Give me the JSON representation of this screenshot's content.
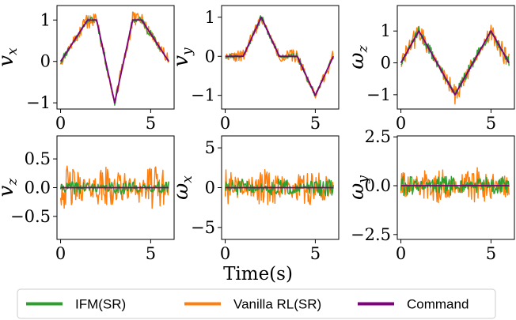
{
  "figure": {
    "xlabel": "Time(s)",
    "legend": {
      "placement": "bottom-center",
      "items": [
        {
          "label": "IFM(SR)",
          "color": "#2ca02c"
        },
        {
          "label": "Vanilla RL(SR)",
          "color": "#ff7f0e"
        },
        {
          "label": "Command",
          "color": "#800080"
        }
      ]
    }
  },
  "chart_data": [
    {
      "type": "line",
      "panel": "top-left",
      "ylabel": "v",
      "ylabel_sub": "x",
      "xlim": [
        -0.2,
        6.3
      ],
      "ylim": [
        -1.15,
        1.35
      ],
      "xticks": [
        0,
        5
      ],
      "xtick_labels": [
        "0",
        "5"
      ],
      "yticks": [
        -1,
        0,
        1
      ],
      "ytick_labels": [
        "−1",
        "0",
        "1"
      ],
      "series": [
        {
          "name": "Command",
          "color": "#800080",
          "x": [
            0,
            1.5,
            2,
            3,
            4,
            4.5,
            6
          ],
          "y": [
            0,
            1,
            1,
            -1,
            1,
            1,
            0
          ]
        },
        {
          "name": "IFM(SR)",
          "color": "#2ca02c",
          "noise": 0.1,
          "seed": 11
        },
        {
          "name": "Vanilla RL(SR)",
          "color": "#ff7f0e",
          "noise": 0.2,
          "seed": 12
        }
      ]
    },
    {
      "type": "line",
      "panel": "top-middle",
      "ylabel": "v",
      "ylabel_sub": "y",
      "xlim": [
        -0.2,
        6.3
      ],
      "ylim": [
        -1.35,
        1.3
      ],
      "xticks": [
        0,
        5
      ],
      "xtick_labels": [
        "0",
        "5"
      ],
      "yticks": [
        -1,
        0,
        1
      ],
      "ytick_labels": [
        "−1",
        "0",
        "1"
      ],
      "series": [
        {
          "name": "Command",
          "color": "#800080",
          "x": [
            0,
            1,
            2,
            3,
            4,
            5,
            6
          ],
          "y": [
            0,
            0,
            1,
            0,
            0,
            -1,
            0
          ]
        },
        {
          "name": "IFM(SR)",
          "color": "#2ca02c",
          "noise": 0.09,
          "seed": 21
        },
        {
          "name": "Vanilla RL(SR)",
          "color": "#ff7f0e",
          "noise": 0.17,
          "seed": 22
        }
      ]
    },
    {
      "type": "line",
      "panel": "top-right",
      "ylabel": "ω",
      "ylabel_sub": "z",
      "xlim": [
        -0.2,
        6.3
      ],
      "ylim": [
        -1.45,
        1.8
      ],
      "xticks": [
        0,
        5
      ],
      "xtick_labels": [
        "0",
        "5"
      ],
      "yticks": [
        -1,
        0,
        1
      ],
      "ytick_labels": [
        "−1",
        "0",
        "1"
      ],
      "series": [
        {
          "name": "Command",
          "color": "#800080",
          "x": [
            0,
            1,
            3,
            5,
            6
          ],
          "y": [
            0,
            1,
            -1,
            1,
            0
          ]
        },
        {
          "name": "IFM(SR)",
          "color": "#2ca02c",
          "noise": 0.18,
          "seed": 31
        },
        {
          "name": "Vanilla RL(SR)",
          "color": "#ff7f0e",
          "noise": 0.32,
          "seed": 32
        }
      ]
    },
    {
      "type": "line",
      "panel": "bottom-left",
      "ylabel": "v",
      "ylabel_sub": "z",
      "xlim": [
        -0.2,
        6.3
      ],
      "ylim": [
        -0.9,
        0.9
      ],
      "xticks": [
        0,
        5
      ],
      "xtick_labels": [
        "0",
        "5"
      ],
      "yticks": [
        -0.5,
        0.0,
        0.5
      ],
      "ytick_labels": [
        "−0.5",
        "0.0",
        "0.5"
      ],
      "series": [
        {
          "name": "Command",
          "color": "#800080",
          "x": [
            0,
            6
          ],
          "y": [
            0,
            0
          ]
        },
        {
          "name": "IFM(SR)",
          "color": "#2ca02c",
          "noise": 0.12,
          "seed": 41
        },
        {
          "name": "Vanilla RL(SR)",
          "color": "#ff7f0e",
          "noise": 0.38,
          "seed": 42
        }
      ]
    },
    {
      "type": "line",
      "panel": "bottom-middle",
      "ylabel": "ω",
      "ylabel_sub": "x",
      "xlim": [
        -0.2,
        6.3
      ],
      "ylim": [
        -6.5,
        6.5
      ],
      "xticks": [
        0,
        5
      ],
      "xtick_labels": [
        "0",
        "5"
      ],
      "yticks": [
        -5,
        0,
        5
      ],
      "ytick_labels": [
        "−5",
        "0",
        "5"
      ],
      "series": [
        {
          "name": "Command",
          "color": "#800080",
          "x": [
            0,
            6
          ],
          "y": [
            0,
            0
          ]
        },
        {
          "name": "IFM(SR)",
          "color": "#2ca02c",
          "noise": 1.1,
          "seed": 51
        },
        {
          "name": "Vanilla RL(SR)",
          "color": "#ff7f0e",
          "noise": 2.3,
          "seed": 52
        }
      ]
    },
    {
      "type": "line",
      "panel": "bottom-right",
      "ylabel": "ω",
      "ylabel_sub": "y",
      "xlim": [
        -0.2,
        6.3
      ],
      "ylim": [
        -2.75,
        2.55
      ],
      "xticks": [
        0,
        5
      ],
      "xtick_labels": [
        "0",
        "5"
      ],
      "yticks": [
        -2.5,
        0.0,
        2.5
      ],
      "ytick_labels": [
        "−2.5",
        "0.0",
        "2.5"
      ],
      "series": [
        {
          "name": "Command",
          "color": "#800080",
          "x": [
            0,
            6
          ],
          "y": [
            0,
            0
          ]
        },
        {
          "name": "IFM(SR)",
          "color": "#2ca02c",
          "noise": 0.55,
          "seed": 61
        },
        {
          "name": "Vanilla RL(SR)",
          "color": "#ff7f0e",
          "noise": 0.95,
          "seed": 62
        }
      ]
    }
  ]
}
